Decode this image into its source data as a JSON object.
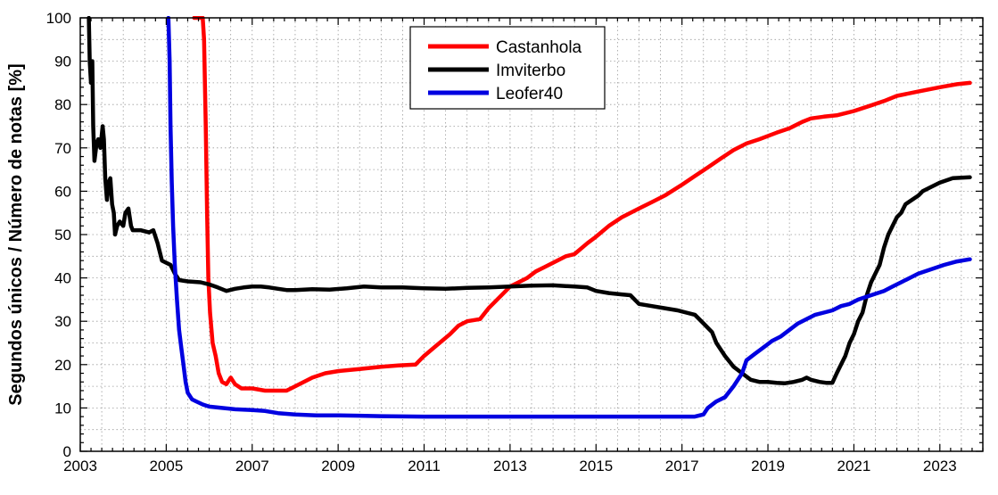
{
  "chart_data": {
    "type": "line",
    "title": "",
    "xlabel": "",
    "ylabel": "Segundos únicos / Número de notas [%]",
    "xlim": [
      2003,
      2024
    ],
    "ylim": [
      0,
      100
    ],
    "x_ticks": [
      2003,
      2005,
      2007,
      2009,
      2011,
      2013,
      2015,
      2017,
      2019,
      2021,
      2023
    ],
    "x_tick_labels": [
      "2003",
      "2005",
      "2007",
      "2009",
      "2011",
      "2013",
      "2015",
      "2017",
      "2019",
      "2021",
      "2023"
    ],
    "y_ticks": [
      0,
      10,
      20,
      30,
      40,
      50,
      60,
      70,
      80,
      90,
      100
    ],
    "y_tick_labels": [
      "0",
      "10",
      "20",
      "30",
      "40",
      "50",
      "60",
      "70",
      "80",
      "90",
      "100"
    ],
    "grid": true,
    "legend_position": "top-center",
    "series": [
      {
        "name": "Castanhola",
        "color": "#ff0000",
        "points": [
          [
            2005.65,
            100
          ],
          [
            2005.85,
            100
          ],
          [
            2005.88,
            95
          ],
          [
            2005.92,
            75
          ],
          [
            2005.95,
            55
          ],
          [
            2005.98,
            40
          ],
          [
            2006.02,
            32
          ],
          [
            2006.08,
            25
          ],
          [
            2006.15,
            22
          ],
          [
            2006.22,
            18
          ],
          [
            2006.3,
            16
          ],
          [
            2006.4,
            15.5
          ],
          [
            2006.5,
            17
          ],
          [
            2006.6,
            15.5
          ],
          [
            2006.75,
            14.5
          ],
          [
            2007.0,
            14.5
          ],
          [
            2007.3,
            14
          ],
          [
            2007.55,
            14
          ],
          [
            2007.8,
            14
          ],
          [
            2008.0,
            15
          ],
          [
            2008.2,
            16
          ],
          [
            2008.4,
            17
          ],
          [
            2008.7,
            18
          ],
          [
            2009.0,
            18.5
          ],
          [
            2009.5,
            19
          ],
          [
            2010.0,
            19.5
          ],
          [
            2010.4,
            19.8
          ],
          [
            2010.8,
            20
          ],
          [
            2011.0,
            22
          ],
          [
            2011.3,
            24.5
          ],
          [
            2011.6,
            27
          ],
          [
            2011.8,
            29
          ],
          [
            2012.0,
            30
          ],
          [
            2012.3,
            30.5
          ],
          [
            2012.5,
            33
          ],
          [
            2012.7,
            35
          ],
          [
            2012.9,
            37
          ],
          [
            2013.0,
            38
          ],
          [
            2013.2,
            39
          ],
          [
            2013.4,
            40
          ],
          [
            2013.6,
            41.5
          ],
          [
            2013.8,
            42.5
          ],
          [
            2014.0,
            43.5
          ],
          [
            2014.3,
            45
          ],
          [
            2014.5,
            45.5
          ],
          [
            2014.8,
            48
          ],
          [
            2015.0,
            49.5
          ],
          [
            2015.3,
            52
          ],
          [
            2015.6,
            54
          ],
          [
            2016.0,
            56
          ],
          [
            2016.3,
            57.5
          ],
          [
            2016.6,
            59
          ],
          [
            2017.0,
            61.5
          ],
          [
            2017.3,
            63.5
          ],
          [
            2017.6,
            65.5
          ],
          [
            2017.9,
            67.5
          ],
          [
            2018.2,
            69.5
          ],
          [
            2018.5,
            71
          ],
          [
            2018.8,
            72
          ],
          [
            2019.2,
            73.5
          ],
          [
            2019.5,
            74.5
          ],
          [
            2019.8,
            76
          ],
          [
            2020.0,
            76.8
          ],
          [
            2020.3,
            77.2
          ],
          [
            2020.6,
            77.5
          ],
          [
            2021.0,
            78.5
          ],
          [
            2021.4,
            79.8
          ],
          [
            2021.7,
            80.8
          ],
          [
            2022.0,
            82
          ],
          [
            2022.5,
            83
          ],
          [
            2023.0,
            84
          ],
          [
            2023.4,
            84.7
          ],
          [
            2023.7,
            85
          ]
        ]
      },
      {
        "name": "Imviterbo",
        "color": "#000000",
        "points": [
          [
            2003.2,
            100
          ],
          [
            2003.22,
            90
          ],
          [
            2003.25,
            85
          ],
          [
            2003.28,
            90
          ],
          [
            2003.3,
            75
          ],
          [
            2003.33,
            67
          ],
          [
            2003.38,
            71
          ],
          [
            2003.42,
            72
          ],
          [
            2003.47,
            70
          ],
          [
            2003.52,
            75
          ],
          [
            2003.55,
            72
          ],
          [
            2003.58,
            63
          ],
          [
            2003.62,
            58
          ],
          [
            2003.66,
            62
          ],
          [
            2003.7,
            63
          ],
          [
            2003.74,
            57
          ],
          [
            2003.78,
            55
          ],
          [
            2003.81,
            50
          ],
          [
            2003.86,
            52
          ],
          [
            2003.92,
            53
          ],
          [
            2004.0,
            52
          ],
          [
            2004.05,
            55
          ],
          [
            2004.12,
            56
          ],
          [
            2004.18,
            52
          ],
          [
            2004.22,
            51
          ],
          [
            2004.4,
            51
          ],
          [
            2004.6,
            50.5
          ],
          [
            2004.7,
            51
          ],
          [
            2004.8,
            48
          ],
          [
            2004.9,
            44
          ],
          [
            2005.0,
            43.5
          ],
          [
            2005.1,
            43
          ],
          [
            2005.2,
            41
          ],
          [
            2005.3,
            39.5
          ],
          [
            2005.5,
            39.2
          ],
          [
            2005.8,
            39
          ],
          [
            2006.0,
            38.5
          ],
          [
            2006.2,
            37.8
          ],
          [
            2006.4,
            37
          ],
          [
            2006.6,
            37.5
          ],
          [
            2006.8,
            37.8
          ],
          [
            2007.0,
            38
          ],
          [
            2007.2,
            38
          ],
          [
            2007.4,
            37.8
          ],
          [
            2007.6,
            37.5
          ],
          [
            2007.8,
            37.2
          ],
          [
            2008.0,
            37.2
          ],
          [
            2008.4,
            37.4
          ],
          [
            2008.8,
            37.3
          ],
          [
            2009.2,
            37.6
          ],
          [
            2009.6,
            38
          ],
          [
            2010.0,
            37.8
          ],
          [
            2010.5,
            37.8
          ],
          [
            2011.0,
            37.6
          ],
          [
            2011.5,
            37.5
          ],
          [
            2012.0,
            37.7
          ],
          [
            2012.5,
            37.8
          ],
          [
            2013.0,
            38
          ],
          [
            2013.5,
            38.2
          ],
          [
            2014.0,
            38.3
          ],
          [
            2014.5,
            38
          ],
          [
            2014.8,
            37.8
          ],
          [
            2015.0,
            37
          ],
          [
            2015.3,
            36.5
          ],
          [
            2015.6,
            36.2
          ],
          [
            2015.8,
            36
          ],
          [
            2016.0,
            34
          ],
          [
            2016.3,
            33.5
          ],
          [
            2016.6,
            33
          ],
          [
            2016.9,
            32.5
          ],
          [
            2017.1,
            32
          ],
          [
            2017.3,
            31.5
          ],
          [
            2017.5,
            29.5
          ],
          [
            2017.7,
            27.5
          ],
          [
            2017.8,
            25
          ],
          [
            2018.0,
            22
          ],
          [
            2018.2,
            19.5
          ],
          [
            2018.4,
            18
          ],
          [
            2018.6,
            16.5
          ],
          [
            2018.8,
            16
          ],
          [
            2019.0,
            16
          ],
          [
            2019.2,
            15.8
          ],
          [
            2019.4,
            15.7
          ],
          [
            2019.6,
            16
          ],
          [
            2019.8,
            16.5
          ],
          [
            2019.9,
            17
          ],
          [
            2020.0,
            16.5
          ],
          [
            2020.2,
            16
          ],
          [
            2020.35,
            15.8
          ],
          [
            2020.5,
            15.8
          ],
          [
            2020.6,
            18
          ],
          [
            2020.7,
            20
          ],
          [
            2020.8,
            22
          ],
          [
            2020.9,
            25
          ],
          [
            2021.0,
            27
          ],
          [
            2021.1,
            30
          ],
          [
            2021.2,
            32
          ],
          [
            2021.3,
            36
          ],
          [
            2021.4,
            39
          ],
          [
            2021.5,
            41
          ],
          [
            2021.6,
            43
          ],
          [
            2021.7,
            47
          ],
          [
            2021.8,
            50
          ],
          [
            2021.9,
            52
          ],
          [
            2022.0,
            54
          ],
          [
            2022.1,
            55
          ],
          [
            2022.2,
            57
          ],
          [
            2022.35,
            58
          ],
          [
            2022.5,
            59
          ],
          [
            2022.6,
            60
          ],
          [
            2022.8,
            61
          ],
          [
            2023.0,
            62
          ],
          [
            2023.3,
            63
          ],
          [
            2023.7,
            63.2
          ]
        ]
      },
      {
        "name": "Leofer40",
        "color": "#0000e0",
        "points": [
          [
            2005.05,
            100
          ],
          [
            2005.08,
            90
          ],
          [
            2005.1,
            75
          ],
          [
            2005.13,
            62
          ],
          [
            2005.16,
            52
          ],
          [
            2005.2,
            43
          ],
          [
            2005.25,
            35
          ],
          [
            2005.3,
            28
          ],
          [
            2005.35,
            24
          ],
          [
            2005.4,
            20
          ],
          [
            2005.45,
            16
          ],
          [
            2005.5,
            13.5
          ],
          [
            2005.6,
            12
          ],
          [
            2005.7,
            11.5
          ],
          [
            2005.85,
            10.8
          ],
          [
            2006.0,
            10.3
          ],
          [
            2006.3,
            10
          ],
          [
            2006.6,
            9.7
          ],
          [
            2007.0,
            9.5
          ],
          [
            2007.3,
            9.3
          ],
          [
            2007.6,
            8.8
          ],
          [
            2008.0,
            8.5
          ],
          [
            2008.5,
            8.3
          ],
          [
            2009.0,
            8.3
          ],
          [
            2009.5,
            8.2
          ],
          [
            2010.0,
            8.1
          ],
          [
            2011.0,
            8
          ],
          [
            2012.0,
            8
          ],
          [
            2013.0,
            8
          ],
          [
            2014.0,
            8
          ],
          [
            2015.0,
            8
          ],
          [
            2016.0,
            8
          ],
          [
            2017.0,
            8
          ],
          [
            2017.3,
            8
          ],
          [
            2017.5,
            8.5
          ],
          [
            2017.6,
            10
          ],
          [
            2017.8,
            11.5
          ],
          [
            2018.0,
            12.5
          ],
          [
            2018.2,
            15
          ],
          [
            2018.4,
            18
          ],
          [
            2018.5,
            21
          ],
          [
            2018.7,
            22.5
          ],
          [
            2018.9,
            24
          ],
          [
            2019.1,
            25.5
          ],
          [
            2019.3,
            26.5
          ],
          [
            2019.5,
            28
          ],
          [
            2019.7,
            29.5
          ],
          [
            2019.9,
            30.5
          ],
          [
            2020.1,
            31.5
          ],
          [
            2020.3,
            32
          ],
          [
            2020.5,
            32.5
          ],
          [
            2020.7,
            33.5
          ],
          [
            2020.9,
            34
          ],
          [
            2021.1,
            35
          ],
          [
            2021.4,
            36
          ],
          [
            2021.7,
            37
          ],
          [
            2021.9,
            38
          ],
          [
            2022.1,
            39
          ],
          [
            2022.3,
            40
          ],
          [
            2022.5,
            41
          ],
          [
            2022.8,
            42
          ],
          [
            2023.1,
            43
          ],
          [
            2023.4,
            43.8
          ],
          [
            2023.7,
            44.3
          ]
        ]
      }
    ]
  }
}
